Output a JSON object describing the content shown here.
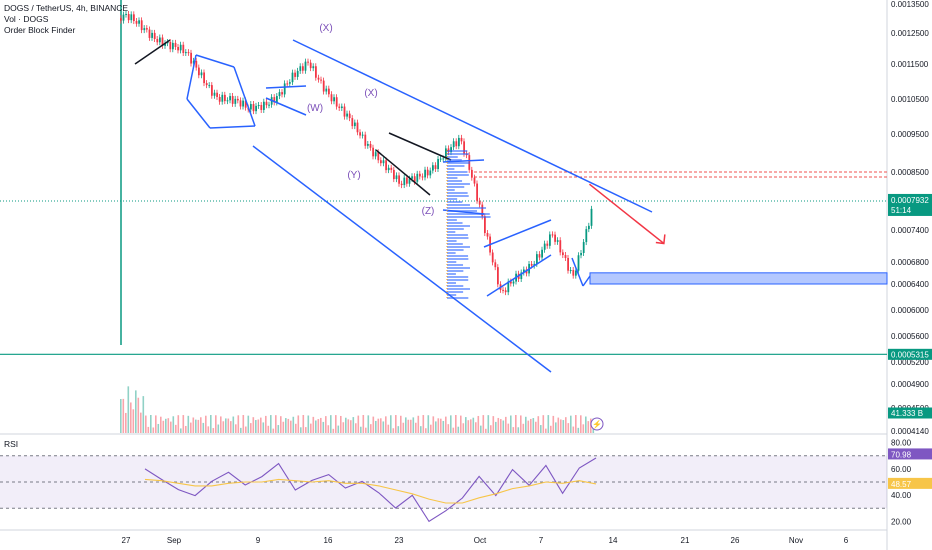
{
  "legend": {
    "symbol_line": "DOGS / TetherUS, 4h, BINANCE",
    "volume_label": "Vol · DOGS",
    "indicator_label": "Order Block Finder"
  },
  "rsi_panel": {
    "title": "RSI"
  },
  "chart_data": [
    {
      "type": "candlestick",
      "title": "DOGS / TetherUS, 4h, BINANCE",
      "y_ticks": [
        "0.0013500",
        "0.0012500",
        "0.0011500",
        "0.0010500",
        "0.0009500",
        "0.0008500",
        "0.0007400",
        "0.0006800",
        "0.0006400",
        "0.0006000",
        "0.0005600",
        "0.0005200",
        "0.0004900",
        "0.0004500",
        "0.0004140"
      ],
      "x_ticks": [
        "27",
        "Sep",
        "9",
        "16",
        "23",
        "Oct",
        "7",
        "14",
        "21",
        "26",
        "Nov",
        "6"
      ],
      "x_tick_dates": [
        "2024-08-27",
        "2024-09-01",
        "2024-09-09",
        "2024-09-16",
        "2024-09-23",
        "2024-10-01",
        "2024-10-07",
        "2024-10-14",
        "2024-10-21",
        "2024-10-26",
        "2024-11-01",
        "2024-11-06"
      ],
      "y_log_scale": true,
      "ylim": [
        0.000414,
        0.00137
      ],
      "last_price": {
        "value": 0.0007932,
        "label": "0.0007932",
        "countdown": "51:14",
        "color": "#2962ff"
      },
      "support_line": {
        "value": 0.0005315,
        "label": "0.0005315",
        "color": "#089981"
      },
      "resistance_zone": {
        "from": 0.00084,
        "to": 0.00085,
        "color": "#ef5350"
      },
      "order_block_zone": {
        "from": 0.00064,
        "to": 0.00066,
        "color": "#2962ff"
      },
      "volume_tag": {
        "value": "41.333",
        "unit": "B",
        "color": "#089981"
      },
      "wave_labels": [
        "(X)",
        "(W)",
        "(X)",
        "(Y)",
        "(Z)"
      ],
      "price_path": [
        {
          "date": "2024-08-27",
          "close": 0.0013
        },
        {
          "date": "2024-08-30",
          "close": 0.00124
        },
        {
          "date": "2024-09-02",
          "close": 0.00118
        },
        {
          "date": "2024-09-05",
          "close": 0.00106
        },
        {
          "date": "2024-09-08",
          "close": 0.00102
        },
        {
          "date": "2024-09-11",
          "close": 0.00106
        },
        {
          "date": "2024-09-14",
          "close": 0.00116
        },
        {
          "date": "2024-09-17",
          "close": 0.00102
        },
        {
          "date": "2024-09-20",
          "close": 0.00092
        },
        {
          "date": "2024-09-23",
          "close": 0.00082
        },
        {
          "date": "2024-09-26",
          "close": 0.00086
        },
        {
          "date": "2024-09-29",
          "close": 0.00093
        },
        {
          "date": "2024-10-01",
          "close": 0.00078
        },
        {
          "date": "2024-10-03",
          "close": 0.00062
        },
        {
          "date": "2024-10-06",
          "close": 0.00068
        },
        {
          "date": "2024-10-08",
          "close": 0.00073
        },
        {
          "date": "2024-10-10",
          "close": 0.00065
        },
        {
          "date": "2024-10-12",
          "close": 0.0007932
        }
      ],
      "projection": [
        {
          "date": "2024-10-12",
          "value": 0.00081
        },
        {
          "date": "2024-10-17",
          "value": 0.00069
        }
      ]
    },
    {
      "type": "line",
      "title": "RSI",
      "y_ticks": [
        "80.00",
        "60.00",
        "40.00",
        "20.00"
      ],
      "band": [
        30,
        70
      ],
      "ylim": [
        15,
        85
      ],
      "current": {
        "value": "70.98",
        "color": "#7e57c2"
      },
      "signal": {
        "value": "48.57",
        "color": "#f7c548"
      },
      "series": [
        {
          "name": "RSI",
          "values": [
            60,
            52,
            44,
            40,
            50,
            58,
            47,
            55,
            63,
            45,
            50,
            57,
            44,
            52,
            40,
            32,
            38,
            22,
            26,
            40,
            52,
            42,
            57,
            50,
            60,
            44,
            58,
            71
          ]
        },
        {
          "name": "MA",
          "values": [
            52,
            51,
            49,
            47,
            47,
            49,
            50,
            50,
            52,
            51,
            50,
            51,
            49,
            49,
            47,
            44,
            41,
            37,
            34,
            34,
            38,
            41,
            45,
            47,
            50,
            49,
            51,
            48.57
          ]
        }
      ]
    }
  ]
}
